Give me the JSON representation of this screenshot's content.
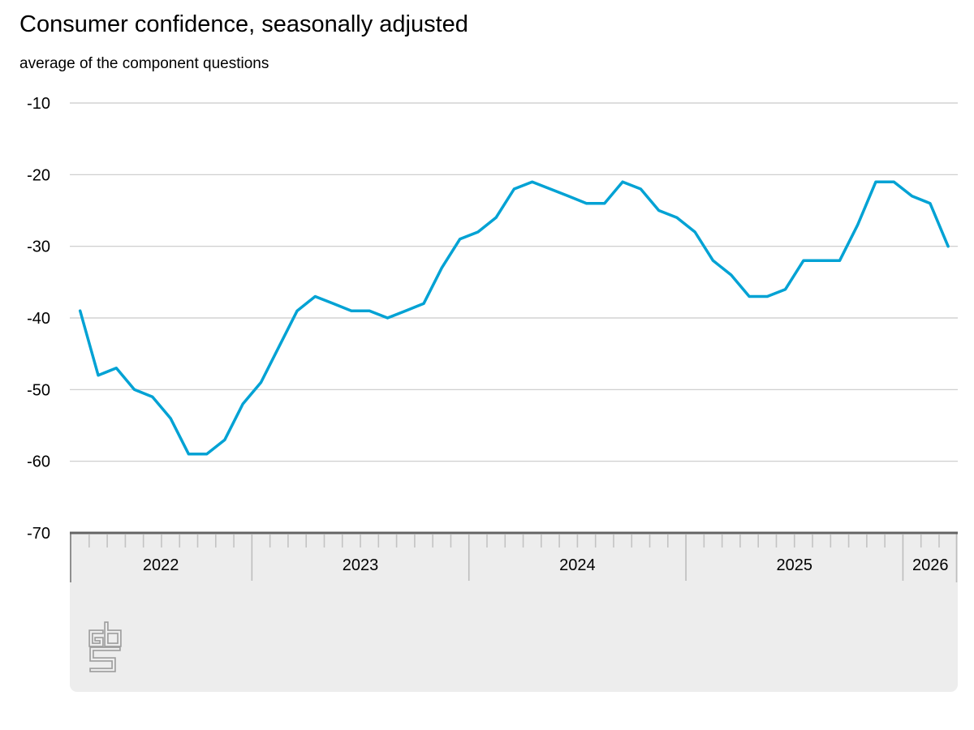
{
  "title": "Consumer confidence, seasonally adjusted",
  "subtitle": "average of the component questions",
  "logo": {
    "name": "CBS",
    "color": "#9d9d9d"
  },
  "colors": {
    "line": "#00a2d4",
    "gridline": "#c9c9c9",
    "axis_line": "#646464",
    "tick": "#c3c3c3",
    "year_separator": "#bdbdbd",
    "edge_line": "#8f8f8f",
    "band": "#ededed",
    "label": "#000000"
  },
  "chart_data": {
    "type": "line",
    "title": "Consumer confidence, seasonally adjusted",
    "subtitle": "average of the component questions",
    "xlabel": "",
    "ylabel": "",
    "ylim": [
      -70,
      -10
    ],
    "y_ticks": [
      -10,
      -20,
      -30,
      -40,
      -50,
      -60,
      -70
    ],
    "y_tick_labels": [
      "-10",
      "-20",
      "-30",
      "-40",
      "-50",
      "-60",
      "-70"
    ],
    "x_tick_years": [
      "2022",
      "2023",
      "2024",
      "2025",
      "2026"
    ],
    "grid": "horizontal",
    "legend": "none",
    "series": [
      {
        "name": "Consumer confidence (seasonally adjusted)",
        "color": "#00a2d4",
        "months": [
          "2022-03",
          "2022-04",
          "2022-05",
          "2022-06",
          "2022-07",
          "2022-08",
          "2022-09",
          "2022-10",
          "2022-11",
          "2022-12",
          "2023-01",
          "2023-02",
          "2023-03",
          "2023-04",
          "2023-05",
          "2023-06",
          "2023-07",
          "2023-08",
          "2023-09",
          "2023-10",
          "2023-11",
          "2023-12",
          "2024-01",
          "2024-02",
          "2024-03",
          "2024-04",
          "2024-05",
          "2024-06",
          "2024-07",
          "2024-08",
          "2024-09",
          "2024-10",
          "2024-11",
          "2024-12",
          "2025-01",
          "2025-02",
          "2025-03",
          "2025-04",
          "2025-05",
          "2025-06",
          "2025-07",
          "2025-08",
          "2025-09",
          "2025-10",
          "2025-11",
          "2025-12",
          "2026-01",
          "2026-02",
          "2026-03"
        ],
        "values": [
          -39,
          -48,
          -47,
          -50,
          -51,
          -54,
          -59,
          -59,
          -57,
          -52,
          -49,
          -44,
          -39,
          -37,
          -38,
          -39,
          -39,
          -40,
          -39,
          -38,
          -33,
          -29,
          -28,
          -26,
          -22,
          -21,
          -22,
          -23,
          -24,
          -24,
          -21,
          -22,
          -25,
          -26,
          -28,
          -32,
          -34,
          -37,
          -37,
          -36,
          -32,
          -32,
          -32,
          -27,
          -21,
          -21,
          -23,
          -24,
          -30
        ]
      }
    ]
  }
}
